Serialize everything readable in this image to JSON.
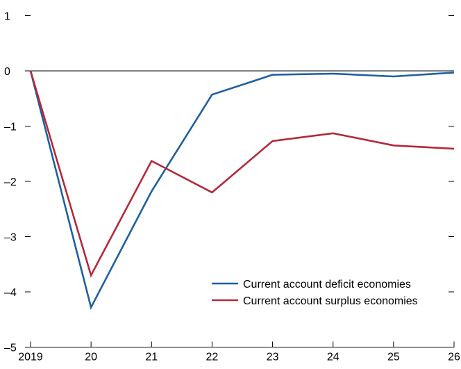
{
  "chart_data": {
    "type": "line",
    "title": "",
    "xlabel": "",
    "ylabel": "",
    "x": [
      "2019",
      "20",
      "21",
      "22",
      "23",
      "24",
      "25",
      "26"
    ],
    "ylim": [
      -5,
      1
    ],
    "yticks": [
      "1",
      "0",
      "–1",
      "–2",
      "–3",
      "–4",
      "–5"
    ],
    "grid": false,
    "zero_line": true,
    "legend_position": "lower-right",
    "series": [
      {
        "name": "Current account deficit economies",
        "color": "#1f5fa0",
        "values": [
          0,
          -4.28,
          -2.18,
          -0.43,
          -0.07,
          -0.05,
          -0.1,
          -0.03
        ]
      },
      {
        "name": "Current account surplus economies",
        "color": "#b5283a",
        "values": [
          0,
          -3.7,
          -1.63,
          -2.2,
          -1.27,
          -1.13,
          -1.35,
          -1.41
        ]
      }
    ]
  }
}
